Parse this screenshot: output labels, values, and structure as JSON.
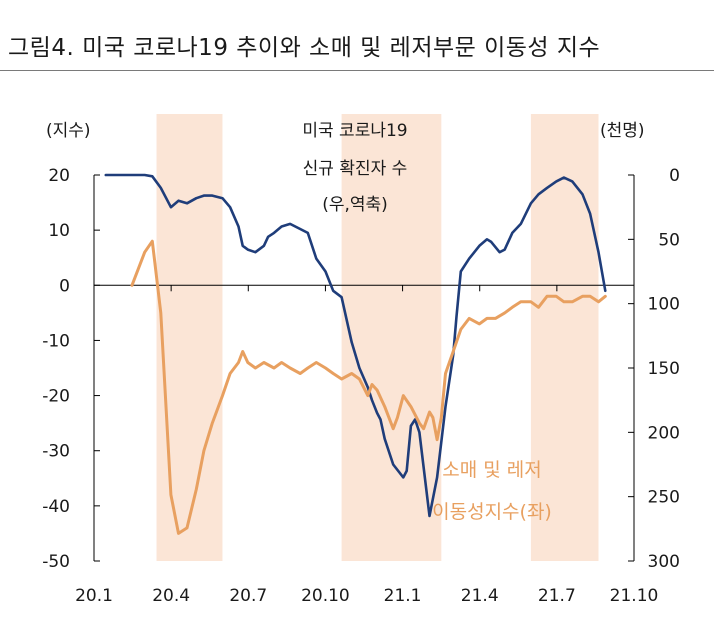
{
  "title": "그림4. 미국 코로나19 추이와 소매 및 레저부문 이동성 지수",
  "chart_data": {
    "type": "line",
    "y_left_unit": "(지수)",
    "y_right_unit": "(천명)",
    "x_ticks": [
      "20.1",
      "20.4",
      "20.7",
      "20.10",
      "21.1",
      "21.4",
      "21.7",
      "21.10"
    ],
    "y_left_ticks": [
      20,
      10,
      0,
      -10,
      -20,
      -30,
      -40,
      -50
    ],
    "y_right_ticks": [
      0,
      50,
      100,
      150,
      200,
      250,
      300
    ],
    "y_left_range": [
      -50,
      20
    ],
    "y_right_range": [
      0,
      300
    ],
    "y_right_inverted": true,
    "shaded_periods": [
      [
        "2020-03-15",
        "2020-06-01"
      ],
      [
        "2020-10-20",
        "2021-02-15"
      ],
      [
        "2021-06-01",
        "2021-08-20"
      ]
    ],
    "annotations": {
      "covid": [
        "미국 코로나19",
        "신규 확진자 수",
        "(우,역축)"
      ],
      "mobility": [
        "소매 및 레저",
        "이동성지수(좌)"
      ]
    },
    "colors": {
      "covid": "#1f3d7a",
      "mobility": "#e8a060",
      "shade": "#fbe5d6",
      "axis": "#000000"
    },
    "series": [
      {
        "key": "covid",
        "axis": "right",
        "x": [
          "2020-01-15",
          "2020-02-01",
          "2020-02-15",
          "2020-03-01",
          "2020-03-10",
          "2020-03-20",
          "2020-04-01",
          "2020-04-10",
          "2020-04-20",
          "2020-05-01",
          "2020-05-10",
          "2020-05-20",
          "2020-06-01",
          "2020-06-10",
          "2020-06-20",
          "2020-06-25",
          "2020-07-01",
          "2020-07-10",
          "2020-07-20",
          "2020-07-25",
          "2020-08-01",
          "2020-08-10",
          "2020-08-20",
          "2020-09-01",
          "2020-09-10",
          "2020-09-20",
          "2020-10-01",
          "2020-10-10",
          "2020-10-20",
          "2020-11-01",
          "2020-11-10",
          "2020-11-20",
          "2020-11-25",
          "2020-12-01",
          "2020-12-05",
          "2020-12-10",
          "2020-12-20",
          "2021-01-01",
          "2021-01-05",
          "2021-01-10",
          "2021-01-15",
          "2021-01-20",
          "2021-02-01",
          "2021-02-10",
          "2021-02-20",
          "2021-03-01",
          "2021-03-05",
          "2021-03-10",
          "2021-03-20",
          "2021-04-01",
          "2021-04-10",
          "2021-04-15",
          "2021-04-25",
          "2021-05-01",
          "2021-05-10",
          "2021-05-20",
          "2021-06-01",
          "2021-06-10",
          "2021-06-20",
          "2021-07-01",
          "2021-07-10",
          "2021-07-20",
          "2021-08-01",
          "2021-08-10",
          "2021-08-20",
          "2021-08-28"
        ],
        "values": [
          0,
          0,
          0,
          0,
          1,
          10,
          25,
          20,
          22,
          18,
          16,
          16,
          18,
          25,
          40,
          55,
          58,
          60,
          55,
          48,
          45,
          40,
          38,
          42,
          45,
          65,
          75,
          90,
          95,
          130,
          150,
          165,
          175,
          185,
          190,
          205,
          225,
          235,
          230,
          195,
          190,
          200,
          265,
          235,
          180,
          140,
          110,
          75,
          65,
          55,
          50,
          52,
          60,
          58,
          45,
          38,
          22,
          15,
          10,
          5,
          2,
          5,
          15,
          30,
          60,
          90
        ]
      },
      {
        "key": "mobility",
        "axis": "left",
        "x": [
          "2020-02-15",
          "2020-03-01",
          "2020-03-10",
          "2020-03-20",
          "2020-04-01",
          "2020-04-10",
          "2020-04-20",
          "2020-05-01",
          "2020-05-10",
          "2020-05-20",
          "2020-06-01",
          "2020-06-10",
          "2020-06-20",
          "2020-06-25",
          "2020-07-01",
          "2020-07-10",
          "2020-07-20",
          "2020-08-01",
          "2020-08-10",
          "2020-08-20",
          "2020-09-01",
          "2020-09-10",
          "2020-09-20",
          "2020-10-01",
          "2020-10-10",
          "2020-10-20",
          "2020-11-01",
          "2020-11-10",
          "2020-11-20",
          "2020-11-25",
          "2020-12-01",
          "2020-12-10",
          "2020-12-20",
          "2020-12-25",
          "2021-01-01",
          "2021-01-10",
          "2021-01-20",
          "2021-01-25",
          "2021-02-01",
          "2021-02-05",
          "2021-02-10",
          "2021-02-15",
          "2021-02-20",
          "2021-03-01",
          "2021-03-10",
          "2021-03-20",
          "2021-04-01",
          "2021-04-10",
          "2021-04-20",
          "2021-05-01",
          "2021-05-10",
          "2021-05-20",
          "2021-06-01",
          "2021-06-10",
          "2021-06-20",
          "2021-07-01",
          "2021-07-10",
          "2021-07-20",
          "2021-08-01",
          "2021-08-10",
          "2021-08-20",
          "2021-08-28"
        ],
        "values": [
          0,
          6,
          8,
          -5,
          -38,
          -45,
          -44,
          -37,
          -30,
          -25,
          -20,
          -16,
          -14,
          -12,
          -14,
          -15,
          -14,
          -15,
          -14,
          -15,
          -16,
          -15,
          -14,
          -15,
          -16,
          -17,
          -16,
          -17,
          -20,
          -18,
          -19,
          -22,
          -26,
          -24,
          -20,
          -22,
          -25,
          -26,
          -23,
          -24,
          -28,
          -24,
          -16,
          -12,
          -8,
          -6,
          -7,
          -6,
          -6,
          -5,
          -4,
          -3,
          -3,
          -4,
          -2,
          -2,
          -3,
          -3,
          -2,
          -2,
          -3,
          -2
        ]
      }
    ]
  }
}
